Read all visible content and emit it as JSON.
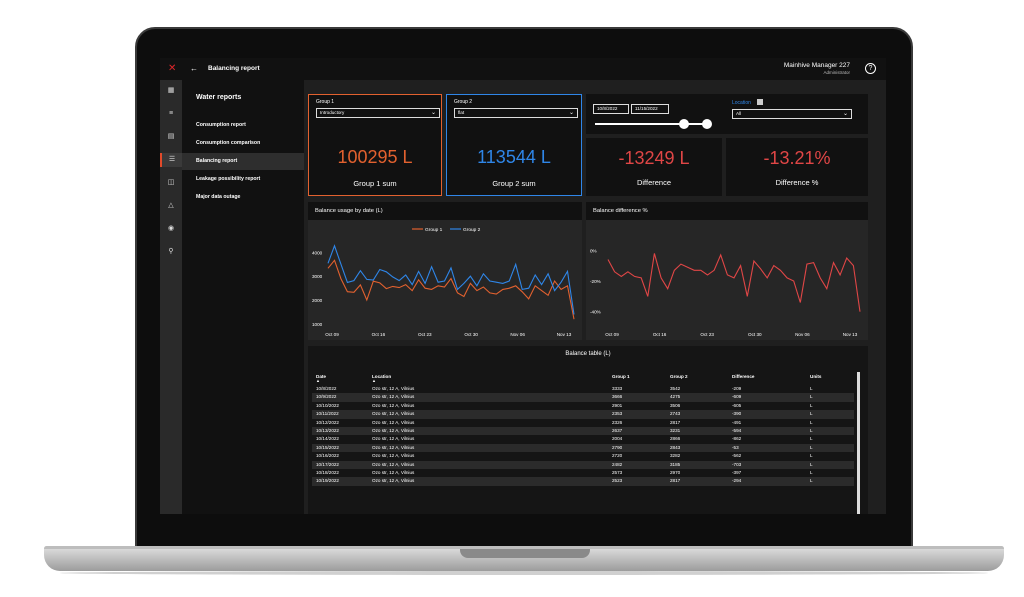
{
  "app": {
    "page_title": "Balancing report",
    "user_name": "Mainhive Manager 227",
    "user_role": "Administrator"
  },
  "rail_icons": [
    "grid-icon",
    "list-icon",
    "chart-icon",
    "table-icon",
    "layers-icon",
    "bell-icon",
    "settings-icon",
    "user-icon"
  ],
  "sidebar": {
    "heading": "Water reports",
    "items": [
      {
        "label": "Consumption report"
      },
      {
        "label": "Consumption comparison"
      },
      {
        "label": "Balancing report"
      },
      {
        "label": "Leakage possibility report"
      },
      {
        "label": "Major data outage"
      }
    ]
  },
  "filters": {
    "group1_label": "Group 1",
    "group1_value": "Introductory",
    "group2_label": "Group 2",
    "group2_value": "flat",
    "date_from": "10/8/2022",
    "date_to": "11/15/2022",
    "location_label": "Location",
    "location_value": "All"
  },
  "kpis": [
    {
      "value": "100295 L",
      "caption": "Group 1 sum",
      "color": "#e2612f"
    },
    {
      "value": "113544 L",
      "caption": "Group 2 sum",
      "color": "#2f86e8"
    },
    {
      "value": "-13249 L",
      "caption": "Difference",
      "color": "#e04646"
    },
    {
      "value": "-13.21%",
      "caption": "Difference %",
      "color": "#e04646"
    }
  ],
  "colors": {
    "group1": "#e2612f",
    "group2": "#2f86e8",
    "difference": "#e04646"
  },
  "chart_data": [
    {
      "type": "line",
      "title": "Balance usage by date (L)",
      "x_ticks": [
        "Oct 09",
        "Oct 16",
        "Oct 23",
        "Oct 30",
        "Nov 06",
        "Nov 13"
      ],
      "y_ticks": [
        "1000",
        "2000",
        "3000",
        "4000"
      ],
      "ylim": [
        1000,
        4600
      ],
      "series": [
        {
          "name": "Group 1",
          "values": [
            3333,
            3666,
            2901,
            2353,
            2326,
            2637,
            2004,
            2790,
            2720,
            2482,
            2573,
            2523,
            2650,
            2400,
            2850,
            2500,
            2450,
            2600,
            2550,
            2900,
            2300,
            2150,
            2700,
            2400,
            2550,
            2300,
            2250,
            2450,
            2500,
            2600,
            2350,
            2050,
            2600,
            2400,
            2200,
            2800,
            2450,
            2600,
            1200
          ]
        },
        {
          "name": "Group 2",
          "values": [
            3542,
            4275,
            3506,
            2743,
            2817,
            3231,
            2866,
            2843,
            3282,
            3185,
            2970,
            2817,
            3050,
            2650,
            3200,
            2700,
            3400,
            2750,
            2800,
            3350,
            2450,
            2700,
            3000,
            2600,
            3100,
            2800,
            2750,
            2700,
            2800,
            3500,
            2450,
            2500,
            3050,
            2650,
            3100,
            2400,
            2750,
            3200,
            1400
          ]
        }
      ]
    },
    {
      "type": "line",
      "title": "Balance difference %",
      "x_ticks": [
        "Oct 09",
        "Oct 16",
        "Oct 23",
        "Oct 30",
        "Nov 06",
        "Nov 13"
      ],
      "y_ticks": [
        "0%",
        "-20%",
        "-40%"
      ],
      "ylim": [
        -48,
        8
      ],
      "series": [
        {
          "name": "Difference %",
          "values": [
            -6,
            -14,
            -17,
            -14,
            -17,
            -18,
            -30,
            -2,
            -18,
            -25,
            -13,
            -9,
            -11,
            -13,
            -13,
            -16,
            -13,
            -3,
            -16,
            -18,
            -10,
            -30,
            -7,
            -12,
            -18,
            -10,
            -13,
            -18,
            -20,
            -34,
            -9,
            -8,
            -18,
            -25,
            -8,
            -16,
            -5,
            -10,
            -40
          ]
        }
      ]
    }
  ],
  "legend": {
    "group1": "Group 1",
    "group2": "Group 2"
  },
  "table": {
    "title": "Balance table (L)",
    "headers": [
      "Date",
      "Location",
      "Group 1",
      "Group 2",
      "Difference",
      "Units"
    ],
    "rows": [
      [
        "10/8/2022",
        "Ozo str, 12 A, Vilnius",
        "3333",
        "3542",
        "-209",
        "L"
      ],
      [
        "10/9/2022",
        "Ozo str, 12 A, Vilnius",
        "3666",
        "4275",
        "-609",
        "L"
      ],
      [
        "10/10/2022",
        "Ozo str, 12 A, Vilnius",
        "2901",
        "3506",
        "-605",
        "L"
      ],
      [
        "10/11/2022",
        "Ozo str, 12 A, Vilnius",
        "2353",
        "2743",
        "-390",
        "L"
      ],
      [
        "10/12/2022",
        "Ozo str, 12 A, Vilnius",
        "2326",
        "2817",
        "-491",
        "L"
      ],
      [
        "10/13/2022",
        "Ozo str, 12 A, Vilnius",
        "2637",
        "3231",
        "-594",
        "L"
      ],
      [
        "10/14/2022",
        "Ozo str, 12 A, Vilnius",
        "2004",
        "2866",
        "-862",
        "L"
      ],
      [
        "10/15/2022",
        "Ozo str, 12 A, Vilnius",
        "2790",
        "2843",
        "-53",
        "L"
      ],
      [
        "10/16/2022",
        "Ozo str, 12 A, Vilnius",
        "2720",
        "3282",
        "-562",
        "L"
      ],
      [
        "10/17/2022",
        "Ozo str, 12 A, Vilnius",
        "2482",
        "3185",
        "-703",
        "L"
      ],
      [
        "10/18/2022",
        "Ozo str, 12 A, Vilnius",
        "2573",
        "2970",
        "-397",
        "L"
      ],
      [
        "10/19/2022",
        "Ozo str, 12 A, Vilnius",
        "2523",
        "2817",
        "-294",
        "L"
      ]
    ]
  }
}
